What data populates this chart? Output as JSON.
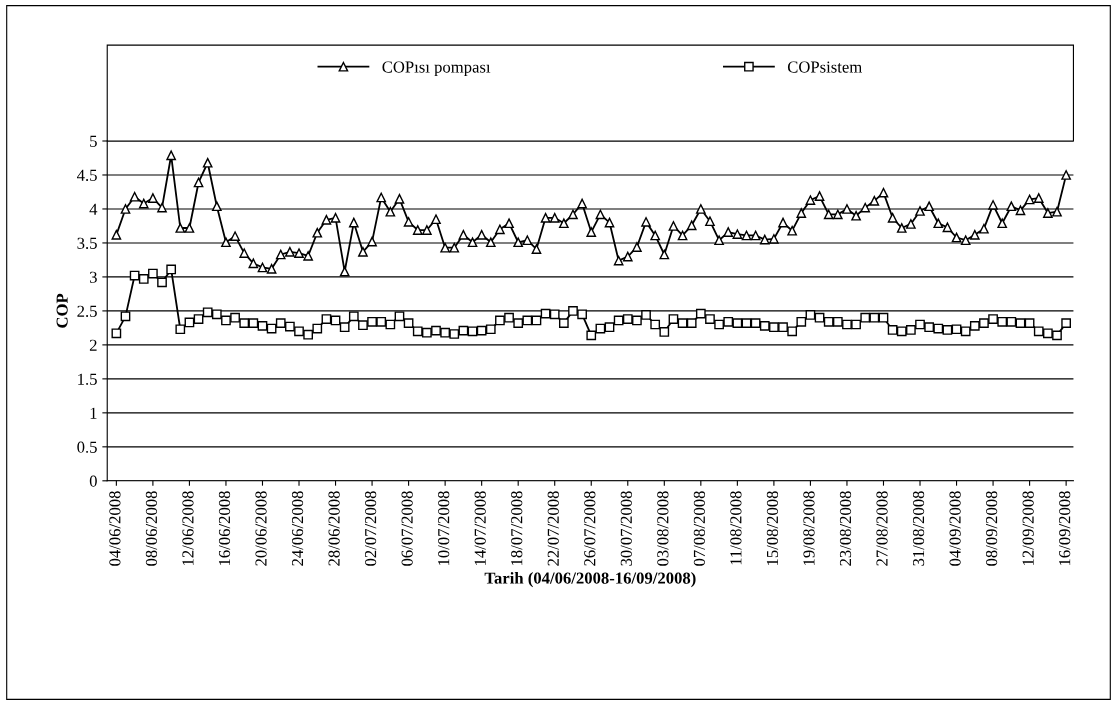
{
  "chart_data": {
    "type": "line",
    "xlabel": "Tarih (04/06/2008-16/09/2008)",
    "ylabel": "COP",
    "categories": [
      "04/06/2008",
      null,
      null,
      null,
      "08/06/2008",
      null,
      null,
      null,
      "12/06/2008",
      null,
      null,
      null,
      "16/06/2008",
      null,
      null,
      null,
      "20/06/2008",
      null,
      null,
      null,
      "24/06/2008",
      null,
      null,
      null,
      "28/06/2008",
      null,
      null,
      null,
      "02/07/2008",
      null,
      null,
      null,
      "06/07/2008",
      null,
      null,
      null,
      "10/07/2008",
      null,
      null,
      null,
      "14/07/2008",
      null,
      null,
      null,
      "18/07/2008",
      null,
      null,
      null,
      "22/07/2008",
      null,
      null,
      null,
      "26/07/2008",
      null,
      null,
      null,
      "30/07/2008",
      null,
      null,
      null,
      "03/08/2008",
      null,
      null,
      null,
      "07/08/2008",
      null,
      null,
      null,
      "11/08/2008",
      null,
      null,
      null,
      "15/08/2008",
      null,
      null,
      null,
      "19/08/2008",
      null,
      null,
      null,
      "23/08/2008",
      null,
      null,
      null,
      "27/08/2008",
      null,
      null,
      null,
      "31/08/2008",
      null,
      null,
      null,
      "04/09/2008",
      null,
      null,
      null,
      "08/09/2008",
      null,
      null,
      null,
      "12/09/2008",
      null,
      null,
      null,
      "16/09/2008"
    ],
    "series": [
      {
        "name": "COPısı pompası",
        "color": "#000000",
        "marker": "triangle",
        "values": [
          3.62,
          4.0,
          4.18,
          4.08,
          4.16,
          4.02,
          4.79,
          3.72,
          3.72,
          4.39,
          4.68,
          4.04,
          3.51,
          3.6,
          3.35,
          3.2,
          3.14,
          3.12,
          3.33,
          3.37,
          3.35,
          3.31,
          3.65,
          3.84,
          3.87,
          3.08,
          3.8,
          3.37,
          3.52,
          4.17,
          3.96,
          4.15,
          3.81,
          3.69,
          3.69,
          3.85,
          3.43,
          3.43,
          3.62,
          3.51,
          3.62,
          3.51,
          3.7,
          3.79,
          3.51,
          3.54,
          3.41,
          3.87,
          3.87,
          3.79,
          3.92,
          4.08,
          3.66,
          3.92,
          3.8,
          3.24,
          3.3,
          3.44,
          3.81,
          3.61,
          3.33,
          3.75,
          3.61,
          3.76,
          4.0,
          3.82,
          3.54,
          3.66,
          3.63,
          3.61,
          3.61,
          3.55,
          3.56,
          3.8,
          3.68,
          3.94,
          4.13,
          4.19,
          3.92,
          3.92,
          4.0,
          3.9,
          4.02,
          4.12,
          4.24,
          3.87,
          3.72,
          3.78,
          3.97,
          4.04,
          3.79,
          3.73,
          3.58,
          3.54,
          3.62,
          3.71,
          4.06,
          3.79,
          4.04,
          3.98,
          4.14,
          4.16,
          3.94,
          3.96,
          4.5
        ]
      },
      {
        "name": "COPsistem",
        "color": "#000000",
        "marker": "square",
        "values": [
          2.17,
          2.42,
          3.02,
          2.97,
          3.05,
          2.92,
          3.11,
          2.23,
          2.33,
          2.38,
          2.48,
          2.45,
          2.36,
          2.4,
          2.32,
          2.32,
          2.28,
          2.24,
          2.32,
          2.27,
          2.2,
          2.15,
          2.24,
          2.38,
          2.36,
          2.26,
          2.42,
          2.29,
          2.34,
          2.34,
          2.3,
          2.42,
          2.32,
          2.2,
          2.18,
          2.21,
          2.18,
          2.16,
          2.21,
          2.2,
          2.21,
          2.23,
          2.36,
          2.4,
          2.32,
          2.36,
          2.36,
          2.46,
          2.45,
          2.32,
          2.5,
          2.45,
          2.14,
          2.24,
          2.26,
          2.36,
          2.38,
          2.36,
          2.44,
          2.3,
          2.19,
          2.38,
          2.32,
          2.32,
          2.46,
          2.38,
          2.3,
          2.34,
          2.32,
          2.32,
          2.32,
          2.28,
          2.26,
          2.26,
          2.2,
          2.34,
          2.44,
          2.4,
          2.34,
          2.34,
          2.3,
          2.3,
          2.4,
          2.4,
          2.4,
          2.22,
          2.2,
          2.22,
          2.3,
          2.26,
          2.24,
          2.22,
          2.23,
          2.2,
          2.28,
          2.32,
          2.38,
          2.34,
          2.34,
          2.32,
          2.32,
          2.2,
          2.17,
          2.14,
          2.32
        ]
      }
    ],
    "ylim": [
      0,
      5
    ],
    "yticks": [
      0,
      0.5,
      1,
      1.5,
      2,
      2.5,
      3,
      3.5,
      4,
      4.5,
      5
    ],
    "grid": "y",
    "legend": "top",
    "line_style": "solid"
  }
}
